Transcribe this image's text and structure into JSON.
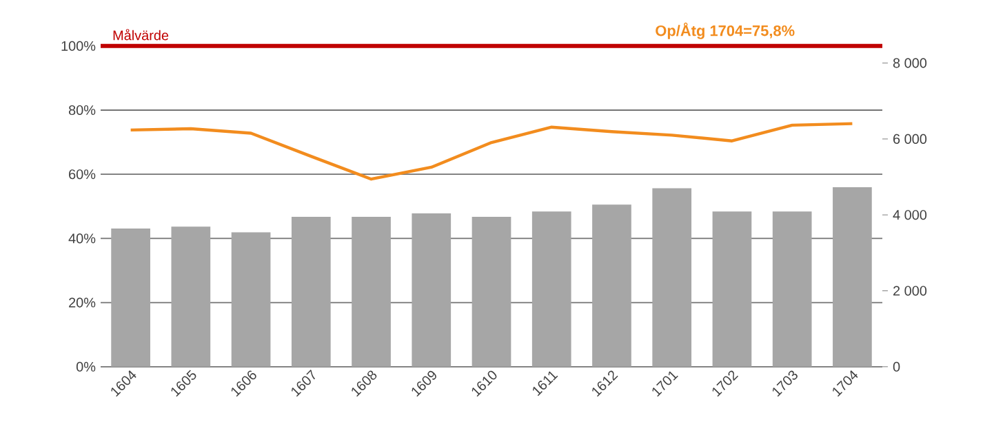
{
  "chart_data": {
    "type": "bar",
    "categories": [
      "1604",
      "1605",
      "1606",
      "1607",
      "1608",
      "1609",
      "1610",
      "1611",
      "1612",
      "1701",
      "1702",
      "1703",
      "1704"
    ],
    "series": [
      {
        "axis": "y2",
        "color": "#a6a6a6",
        "values": [
          3640,
          3690,
          3540,
          3950,
          3950,
          4040,
          3950,
          4090,
          4270,
          4700,
          4090,
          4090,
          4730
        ]
      },
      {
        "type": "line",
        "axis": "y",
        "color": "#f28c1e",
        "values": [
          73.8,
          74.2,
          72.8,
          65.6,
          58.5,
          62.2,
          69.9,
          74.7,
          73.3,
          72.2,
          70.4,
          75.3,
          75.8
        ]
      }
    ],
    "ylim": [
      0,
      100
    ],
    "yticks": [
      {
        "value": 0,
        "label": "0%"
      },
      {
        "value": 20,
        "label": "20%"
      },
      {
        "value": 40,
        "label": "40%"
      },
      {
        "value": 60,
        "label": "60%"
      },
      {
        "value": 80,
        "label": "80%"
      },
      {
        "value": 100,
        "label": "100%"
      }
    ],
    "y2lim": [
      0,
      8450
    ],
    "y2ticks": [
      0,
      {
        "value": 2000,
        "label": "2 000"
      },
      {
        "value": 4000,
        "label": "4 000"
      },
      {
        "value": 6000,
        "label": "6 000"
      },
      {
        "value": 8000,
        "label": "8 000"
      }
    ],
    "grid": "y",
    "ref_lines": [
      {
        "axis": "y",
        "value": 100,
        "label": "Målvärde",
        "color": "#c00000"
      }
    ],
    "annotations": [
      "Op/Åtg 1704=75,8%"
    ]
  }
}
